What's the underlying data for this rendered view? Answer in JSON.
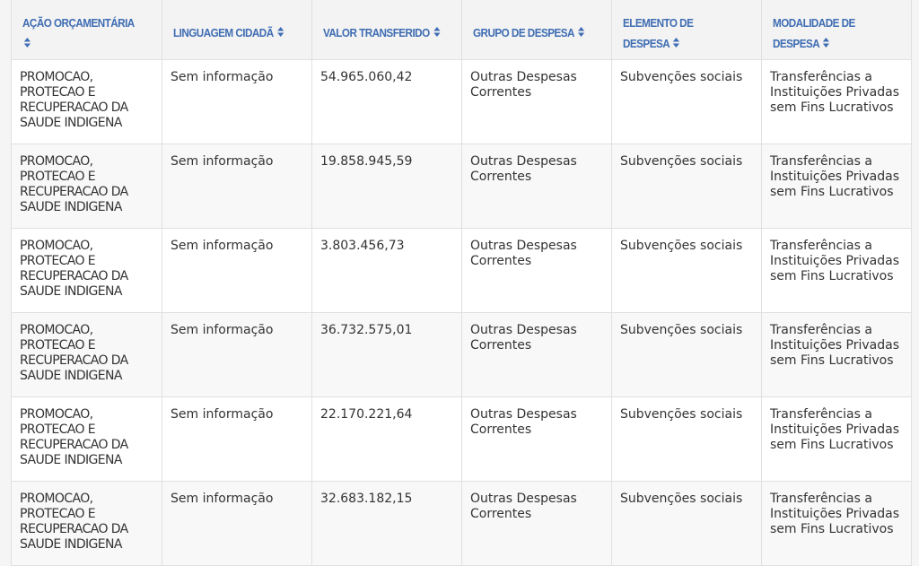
{
  "table": {
    "columns": [
      {
        "label": "AÇÃO ORÇAMENTÁRIA",
        "sort_icon": "sort-icon"
      },
      {
        "label": "LINGUAGEM CIDADÃ",
        "sort_icon": "sort-icon"
      },
      {
        "label": "VALOR TRANSFERIDO",
        "sort_icon": "sort-icon"
      },
      {
        "label": "GRUPO DE DESPESA",
        "sort_icon": "sort-icon"
      },
      {
        "label": "ELEMENTO DE DESPESA",
        "sort_icon": "sort-icon"
      },
      {
        "label": "MODALIDADE DE DESPESA",
        "sort_icon": "sort-icon"
      }
    ],
    "rows": [
      [
        "PROMOCAO, PROTECAO E RECUPERACAO DA SAUDE INDIGENA",
        "Sem informação",
        "54.965.060,42",
        "Outras Despesas Correntes",
        "Subvenções sociais",
        "Transferências a Instituições Privadas sem Fins Lucrativos"
      ],
      [
        "PROMOCAO, PROTECAO E RECUPERACAO DA SAUDE INDIGENA",
        "Sem informação",
        "19.858.945,59",
        "Outras Despesas Correntes",
        "Subvenções sociais",
        "Transferências a Instituições Privadas sem Fins Lucrativos"
      ],
      [
        "PROMOCAO, PROTECAO E RECUPERACAO DA SAUDE INDIGENA",
        "Sem informação",
        "3.803.456,73",
        "Outras Despesas Correntes",
        "Subvenções sociais",
        "Transferências a Instituições Privadas sem Fins Lucrativos"
      ],
      [
        "PROMOCAO, PROTECAO E RECUPERACAO DA SAUDE INDIGENA",
        "Sem informação",
        "36.732.575,01",
        "Outras Despesas Correntes",
        "Subvenções sociais",
        "Transferências a Instituições Privadas sem Fins Lucrativos"
      ],
      [
        "PROMOCAO, PROTECAO E RECUPERACAO DA SAUDE INDIGENA",
        "Sem informação",
        "22.170.221,64",
        "Outras Despesas Correntes",
        "Subvenções sociais",
        "Transferências a Instituições Privadas sem Fins Lucrativos"
      ],
      [
        "PROMOCAO, PROTECAO E RECUPERACAO DA SAUDE INDIGENA",
        "Sem informação",
        "32.683.182,15",
        "Outras Despesas Correntes",
        "Subvenções sociais",
        "Transferências a Instituições Privadas sem Fins Lucrativos"
      ]
    ]
  },
  "colors": {
    "header_text": "#3f6db3",
    "header_bg": "#f3f3f3",
    "row_alt": "#f8f8f8"
  }
}
